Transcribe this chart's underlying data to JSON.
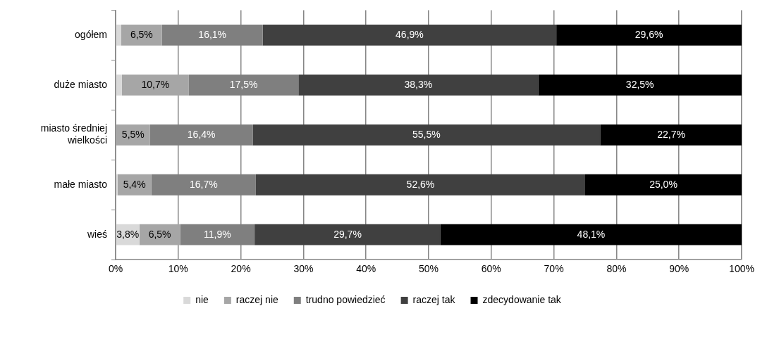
{
  "chart_data": {
    "type": "bar",
    "orientation": "horizontal",
    "stacked": true,
    "categories": [
      "ogółem",
      "duże miasto",
      "miasto średniej wielkości",
      "małe miasto",
      "wieś"
    ],
    "series": [
      {
        "name": "nie",
        "color": "#d9d9d9",
        "values": [
          0.9,
          1.0,
          0,
          0.3,
          3.8
        ],
        "value_labels": [
          null,
          null,
          null,
          null,
          "3,8%"
        ]
      },
      {
        "name": "raczej nie",
        "color": "#a6a6a6",
        "values": [
          6.5,
          10.7,
          5.5,
          5.4,
          6.5
        ],
        "value_labels": [
          "6,5%",
          "10,7%",
          "5,5%",
          "5,4%",
          "6,5%"
        ]
      },
      {
        "name": "trudno powiedzieć",
        "color": "#7f7f7f",
        "values": [
          16.1,
          17.5,
          16.4,
          16.7,
          11.9
        ],
        "value_labels": [
          "16,1%",
          "17,5%",
          "16,4%",
          "16,7%",
          "11,9%"
        ]
      },
      {
        "name": "raczej tak",
        "color": "#404040",
        "values": [
          46.9,
          38.3,
          55.5,
          52.6,
          29.7
        ],
        "value_labels": [
          "46,9%",
          "38,3%",
          "55,5%",
          "52,6%",
          "29,7%"
        ]
      },
      {
        "name": "zdecydowanie tak",
        "color": "#000000",
        "values": [
          29.6,
          32.5,
          22.7,
          25.0,
          48.1
        ],
        "value_labels": [
          "29,6%",
          "32,5%",
          "22,7%",
          "25,0%",
          "48,1%"
        ]
      }
    ],
    "xlim": [
      0,
      100
    ],
    "xticks": [
      {
        "value": 0,
        "label": "0%"
      },
      {
        "value": 10,
        "label": "10%"
      },
      {
        "value": 20,
        "label": "20%"
      },
      {
        "value": 30,
        "label": "30%"
      },
      {
        "value": 40,
        "label": "40%"
      },
      {
        "value": 50,
        "label": "50%"
      },
      {
        "value": 60,
        "label": "60%"
      },
      {
        "value": 70,
        "label": "70%"
      },
      {
        "value": 80,
        "label": "80%"
      },
      {
        "value": 90,
        "label": "90%"
      },
      {
        "value": 100,
        "label": "100%"
      }
    ],
    "grid": "x",
    "legend": "bottom"
  }
}
